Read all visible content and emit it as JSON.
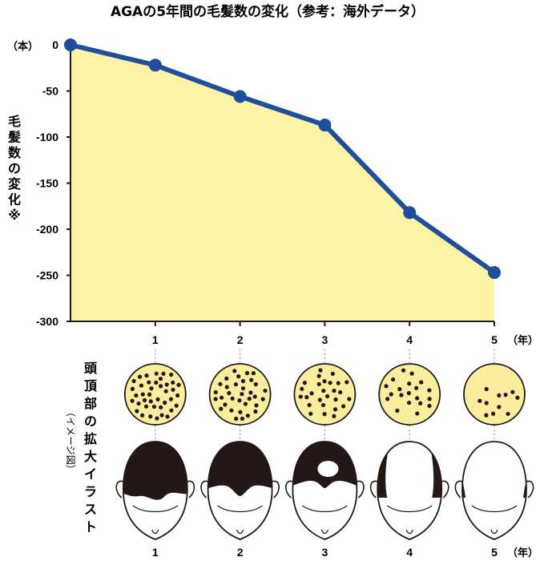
{
  "chart_data": {
    "type": "area",
    "title": "AGAの5年間の毛髪数の変化（参考：海外データ）",
    "ylabel": "毛髪数の変化※",
    "y_unit": "（本）",
    "x_unit": "（年）",
    "x": [
      0,
      1,
      2,
      3,
      4,
      5
    ],
    "values": [
      0,
      -22,
      -56,
      -87,
      -182,
      -247
    ],
    "ylim": [
      -300,
      0
    ],
    "yticks": [
      0,
      -50,
      -100,
      -150,
      -200,
      -250,
      -300
    ],
    "x_tick_labels": [
      "1",
      "2",
      "3",
      "4",
      "5"
    ],
    "grid": false,
    "legend": "none",
    "colors": {
      "line": "#1f4e9c",
      "fill": "#fdf3a6",
      "scalp": "#fbed9e",
      "hair": "#231815",
      "guide": "#9c9c9c"
    }
  },
  "illustration": {
    "label": "頭頂部の拡大イラスト",
    "note": "（イメージ図）",
    "x_tick_labels": [
      "1",
      "2",
      "3",
      "4",
      "5"
    ],
    "x_unit": "（年）",
    "hair_density": [
      40,
      34,
      27,
      20,
      11
    ],
    "balding_stage": [
      1,
      2,
      3,
      4,
      5
    ]
  }
}
